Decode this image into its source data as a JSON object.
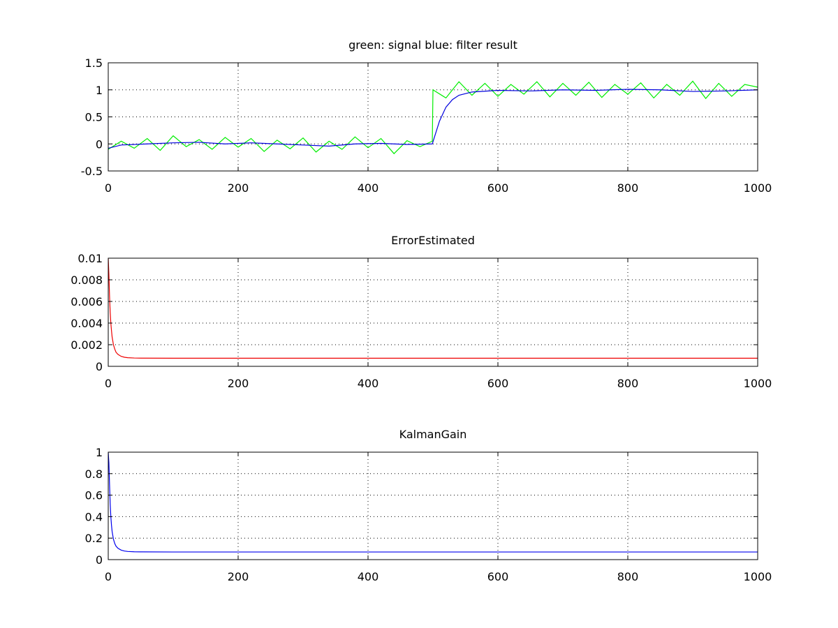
{
  "chart_data": [
    {
      "type": "line",
      "title": "green: signal  blue: filter result",
      "xlim": [
        0,
        1000
      ],
      "ylim": [
        -0.5,
        1.5
      ],
      "xticks": [
        0,
        200,
        400,
        600,
        800,
        1000
      ],
      "xtick_labels": [
        "0",
        "200",
        "400",
        "600",
        "800",
        "1000"
      ],
      "yticks": [
        -0.5,
        0,
        0.5,
        1,
        1.5
      ],
      "ytick_labels": [
        "-0.5",
        "0",
        "0.5",
        "1",
        "1.5"
      ],
      "grid": true,
      "series": [
        {
          "color": "#00ee00",
          "x": [
            0,
            20,
            40,
            60,
            80,
            100,
            120,
            140,
            160,
            180,
            200,
            220,
            240,
            260,
            280,
            300,
            320,
            340,
            360,
            380,
            400,
            420,
            440,
            460,
            480,
            499,
            500,
            520,
            540,
            560,
            580,
            600,
            620,
            640,
            660,
            680,
            700,
            720,
            740,
            760,
            780,
            800,
            820,
            840,
            860,
            880,
            900,
            920,
            940,
            960,
            980,
            1000
          ],
          "values": [
            -0.1,
            0.05,
            -0.08,
            0.1,
            -0.12,
            0.15,
            -0.05,
            0.08,
            -0.1,
            0.12,
            -0.06,
            0.1,
            -0.14,
            0.07,
            -0.09,
            0.11,
            -0.15,
            0.05,
            -0.1,
            0.13,
            -0.07,
            0.1,
            -0.18,
            0.06,
            -0.05,
            0.05,
            1.0,
            0.85,
            1.15,
            0.9,
            1.12,
            0.88,
            1.1,
            0.92,
            1.15,
            0.87,
            1.12,
            0.9,
            1.14,
            0.86,
            1.1,
            0.92,
            1.13,
            0.85,
            1.1,
            0.9,
            1.16,
            0.84,
            1.12,
            0.88,
            1.1,
            1.05
          ]
        },
        {
          "color": "#0000dd",
          "x": [
            0,
            20,
            60,
            100,
            140,
            180,
            220,
            260,
            300,
            340,
            380,
            420,
            460,
            499,
            500,
            510,
            520,
            530,
            540,
            560,
            600,
            650,
            700,
            750,
            800,
            850,
            900,
            950,
            1000
          ],
          "values": [
            -0.08,
            -0.02,
            0.0,
            0.02,
            0.03,
            0.0,
            0.02,
            0.0,
            -0.02,
            -0.04,
            0.0,
            0.01,
            -0.01,
            0.0,
            0.04,
            0.42,
            0.68,
            0.82,
            0.9,
            0.96,
            0.99,
            0.98,
            1.0,
            0.99,
            1.01,
            1.0,
            0.97,
            0.98,
            1.0
          ]
        }
      ]
    },
    {
      "type": "line",
      "title": "ErrorEstimated",
      "xlim": [
        0,
        1000
      ],
      "ylim": [
        0,
        0.01
      ],
      "xticks": [
        0,
        200,
        400,
        600,
        800,
        1000
      ],
      "xtick_labels": [
        "0",
        "200",
        "400",
        "600",
        "800",
        "1000"
      ],
      "yticks": [
        0,
        0.002,
        0.004,
        0.006,
        0.008,
        0.01
      ],
      "ytick_labels": [
        "0",
        "0.002",
        "0.004",
        "0.006",
        "0.008",
        "0.01"
      ],
      "grid": true,
      "series": [
        {
          "color": "#ee0000",
          "x": [
            0,
            1,
            2,
            3,
            4,
            5,
            6,
            8,
            10,
            12,
            15,
            20,
            25,
            30,
            40,
            50,
            100,
            1000
          ],
          "values": [
            0.01,
            0.0085,
            0.0065,
            0.005,
            0.004,
            0.0033,
            0.0027,
            0.002,
            0.0016,
            0.0013,
            0.0011,
            0.00092,
            0.00084,
            0.0008,
            0.00077,
            0.00076,
            0.00075,
            0.00075
          ]
        }
      ]
    },
    {
      "type": "line",
      "title": "KalmanGain",
      "xlim": [
        0,
        1000
      ],
      "ylim": [
        0,
        1
      ],
      "xticks": [
        0,
        200,
        400,
        600,
        800,
        1000
      ],
      "xtick_labels": [
        "0",
        "200",
        "400",
        "600",
        "800",
        "1000"
      ],
      "yticks": [
        0,
        0.2,
        0.4,
        0.6,
        0.8,
        1
      ],
      "ytick_labels": [
        "0",
        "0.2",
        "0.4",
        "0.6",
        "0.8",
        "1"
      ],
      "grid": true,
      "series": [
        {
          "color": "#0000ee",
          "x": [
            0,
            1,
            2,
            3,
            4,
            5,
            6,
            8,
            10,
            12,
            15,
            20,
            25,
            30,
            40,
            50,
            100,
            1000
          ],
          "values": [
            1.0,
            0.9,
            0.7,
            0.52,
            0.4,
            0.32,
            0.26,
            0.19,
            0.15,
            0.125,
            0.105,
            0.088,
            0.08,
            0.076,
            0.073,
            0.072,
            0.071,
            0.071
          ]
        }
      ]
    }
  ]
}
